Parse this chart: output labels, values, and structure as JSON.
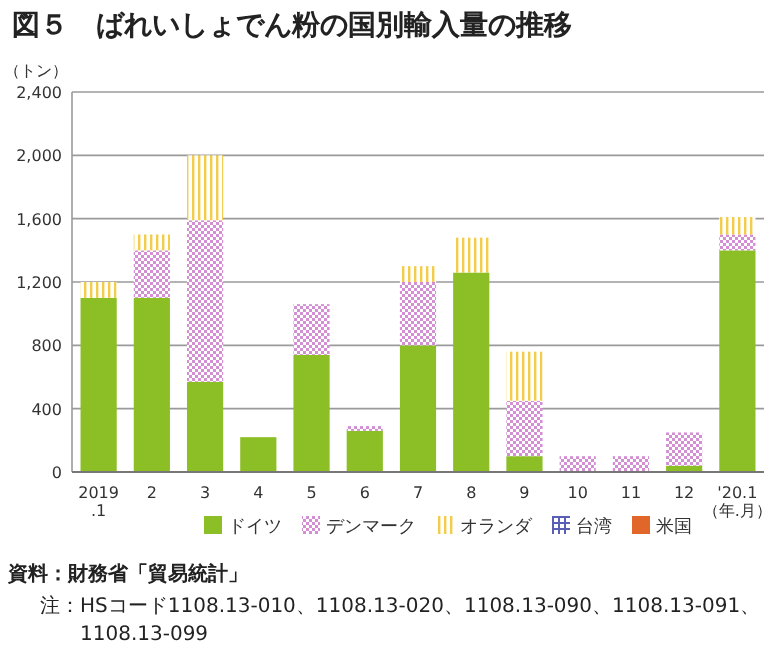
{
  "chart_data": {
    "type": "bar",
    "stacked": true,
    "title": "図５　ばれいしょでん粉の国別輸入量の推移",
    "ylabel": "（トン）",
    "xlabel": "（年.月）",
    "categories": [
      "2019\n.1",
      "2",
      "3",
      "4",
      "5",
      "6",
      "7",
      "8",
      "9",
      "10",
      "11",
      "12",
      "'20.1"
    ],
    "series": [
      {
        "name": "ドイツ",
        "color": "#8cbf26",
        "values": [
          1100,
          1100,
          570,
          220,
          740,
          260,
          800,
          1260,
          100,
          0,
          0,
          40,
          1400
        ]
      },
      {
        "name": "デンマーク",
        "color": "#d48fd4",
        "values": [
          0,
          300,
          1020,
          0,
          320,
          30,
          400,
          0,
          350,
          100,
          100,
          210,
          100
        ]
      },
      {
        "name": "オランダ",
        "color": "#f2cc4a",
        "values": [
          100,
          100,
          410,
          0,
          0,
          0,
          100,
          220,
          310,
          0,
          0,
          0,
          110
        ]
      },
      {
        "name": "台湾",
        "color": "#5a5fb5",
        "values": [
          0,
          0,
          0,
          0,
          0,
          0,
          0,
          0,
          0,
          0,
          0,
          0,
          0
        ]
      },
      {
        "name": "米国",
        "color": "#e0662a",
        "values": [
          0,
          0,
          0,
          0,
          0,
          0,
          0,
          0,
          0,
          0,
          0,
          0,
          0
        ]
      }
    ],
    "ylim": [
      0,
      2400
    ],
    "yticks": [
      {
        "value": 0,
        "label": "0"
      },
      {
        "value": 400,
        "label": "400"
      },
      {
        "value": 800,
        "label": "800"
      },
      {
        "value": 1200,
        "label": "1,200"
      },
      {
        "value": 1600,
        "label": "1,600"
      },
      {
        "value": 2000,
        "label": "2,000"
      },
      {
        "value": 2400,
        "label": "2,400"
      }
    ],
    "grid": "y",
    "legend": "bottom",
    "annotations": [
      "資料：財務省「貿易統計」",
      "注：HSコード1108.13-010、1108.13-020、1108.13-090、1108.13-091、1108.13-099"
    ]
  }
}
